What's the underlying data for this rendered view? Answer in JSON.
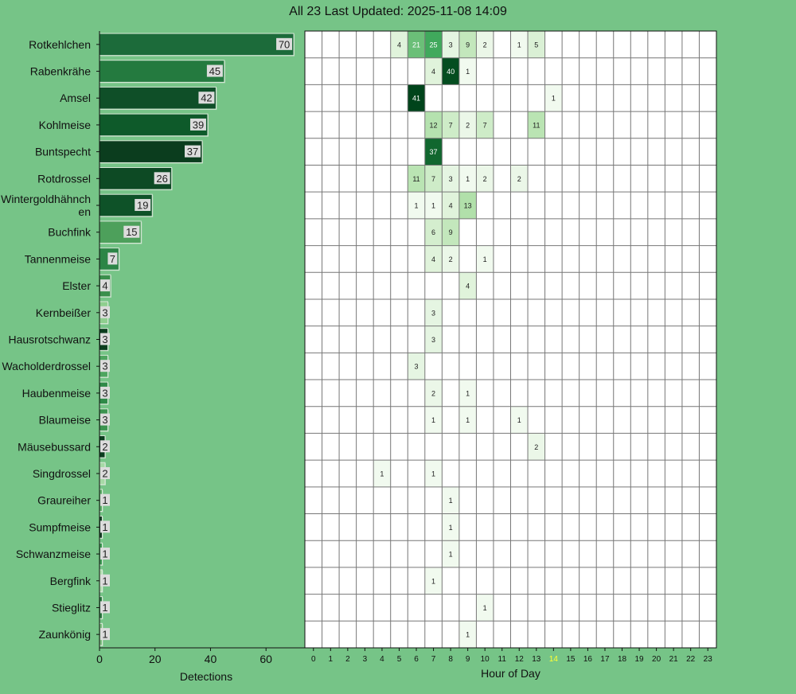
{
  "page": {
    "title": "All 23 Last Updated: 2025-11-08 14:09"
  },
  "chart_data": [
    {
      "type": "bar",
      "orientation": "horizontal",
      "categories": [
        "Rotkehlchen",
        "Rabenkrähe",
        "Amsel",
        "Kohlmeise",
        "Buntspecht",
        "Rotdrossel",
        "Wintergoldhähnchen",
        "Buchfink",
        "Tannenmeise",
        "Elster",
        "Kernbeißer",
        "Hausrotschwanz",
        "Wacholderdrossel",
        "Haubenmeise",
        "Blaumeise",
        "Mäusebussard",
        "Singdrossel",
        "Graureiher",
        "Sumpfmeise",
        "Schwanzmeise",
        "Bergfink",
        "Stieglitz",
        "Zaunkönig"
      ],
      "category_labels": [
        [
          "Rotkehlchen"
        ],
        [
          "Rabenkrähe"
        ],
        [
          "Amsel"
        ],
        [
          "Kohlmeise"
        ],
        [
          "Buntspecht"
        ],
        [
          "Rotdrossel"
        ],
        [
          "Wintergoldhähnch",
          "en"
        ],
        [
          "Buchfink"
        ],
        [
          "Tannenmeise"
        ],
        [
          "Elster"
        ],
        [
          "Kernbeißer"
        ],
        [
          "Hausrotschwanz"
        ],
        [
          "Wacholderdrossel"
        ],
        [
          "Haubenmeise"
        ],
        [
          "Blaumeise"
        ],
        [
          "Mäusebussard"
        ],
        [
          "Singdrossel"
        ],
        [
          "Graureiher"
        ],
        [
          "Sumpfmeise"
        ],
        [
          "Schwanzmeise"
        ],
        [
          "Bergfink"
        ],
        [
          "Stieglitz"
        ],
        [
          "Zaunkönig"
        ]
      ],
      "values": [
        70,
        45,
        42,
        39,
        37,
        26,
        19,
        15,
        7,
        4,
        3,
        3,
        3,
        3,
        3,
        2,
        2,
        1,
        1,
        1,
        1,
        1,
        1
      ],
      "bar_colors": [
        "#1c6b3a",
        "#247a3f",
        "#0f4f28",
        "#0e5a2a",
        "#0b3d1e",
        "#0d4a24",
        "#0e5228",
        "#4da05b",
        "#2c8546",
        "#3a8f4c",
        "#8fcf8f",
        "#0b3d1e",
        "#4ea55f",
        "#2f8a48",
        "#3b9450",
        "#0b3d1e",
        "#a6d9a6",
        "#5cad67",
        "#123d22",
        "#3d9a53",
        "#b2e0b0",
        "#2a7a40",
        "#7dbf7f"
      ],
      "xlabel": "Detections",
      "xticks": [
        0,
        20,
        40,
        60
      ],
      "xlim": [
        0,
        74
      ]
    },
    {
      "type": "heatmap",
      "rows": [
        "Rotkehlchen",
        "Rabenkrähe",
        "Amsel",
        "Kohlmeise",
        "Buntspecht",
        "Rotdrossel",
        "Wintergoldhähnchen",
        "Buchfink",
        "Tannenmeise",
        "Elster",
        "Kernbeißer",
        "Hausrotschwanz",
        "Wacholderdrossel",
        "Haubenmeise",
        "Blaumeise",
        "Mäusebussard",
        "Singdrossel",
        "Graureiher",
        "Sumpfmeise",
        "Schwanzmeise",
        "Bergfink",
        "Stieglitz",
        "Zaunkönig"
      ],
      "columns": [
        0,
        1,
        2,
        3,
        4,
        5,
        6,
        7,
        8,
        9,
        10,
        11,
        12,
        13,
        14,
        15,
        16,
        17,
        18,
        19,
        20,
        21,
        22,
        23
      ],
      "xlabel": "Hour of Day",
      "highlight_column": 14,
      "highlight_color": "#ffff33",
      "cells": [
        [
          0,
          5,
          4
        ],
        [
          0,
          6,
          21
        ],
        [
          0,
          7,
          25
        ],
        [
          0,
          8,
          3
        ],
        [
          0,
          9,
          9
        ],
        [
          0,
          10,
          2
        ],
        [
          0,
          12,
          1
        ],
        [
          0,
          13,
          5
        ],
        [
          1,
          7,
          4
        ],
        [
          1,
          8,
          40
        ],
        [
          1,
          9,
          1
        ],
        [
          2,
          6,
          41
        ],
        [
          2,
          14,
          1
        ],
        [
          3,
          7,
          12
        ],
        [
          3,
          8,
          7
        ],
        [
          3,
          9,
          2
        ],
        [
          3,
          10,
          7
        ],
        [
          3,
          13,
          11
        ],
        [
          4,
          7,
          37
        ],
        [
          5,
          6,
          11
        ],
        [
          5,
          7,
          7
        ],
        [
          5,
          8,
          3
        ],
        [
          5,
          9,
          1
        ],
        [
          5,
          10,
          2
        ],
        [
          5,
          12,
          2
        ],
        [
          6,
          6,
          1
        ],
        [
          6,
          7,
          1
        ],
        [
          6,
          8,
          4
        ],
        [
          6,
          9,
          13
        ],
        [
          7,
          7,
          6
        ],
        [
          7,
          8,
          9
        ],
        [
          8,
          7,
          4
        ],
        [
          8,
          8,
          2
        ],
        [
          8,
          10,
          1
        ],
        [
          9,
          9,
          4
        ],
        [
          10,
          7,
          3
        ],
        [
          11,
          7,
          3
        ],
        [
          12,
          6,
          3
        ],
        [
          13,
          7,
          2
        ],
        [
          13,
          9,
          1
        ],
        [
          14,
          7,
          1
        ],
        [
          14,
          9,
          1
        ],
        [
          14,
          12,
          1
        ],
        [
          15,
          13,
          2
        ],
        [
          16,
          4,
          1
        ],
        [
          16,
          7,
          1
        ],
        [
          17,
          8,
          1
        ],
        [
          18,
          8,
          1
        ],
        [
          19,
          8,
          1
        ],
        [
          20,
          7,
          1
        ],
        [
          21,
          10,
          1
        ],
        [
          22,
          9,
          1
        ]
      ]
    }
  ]
}
